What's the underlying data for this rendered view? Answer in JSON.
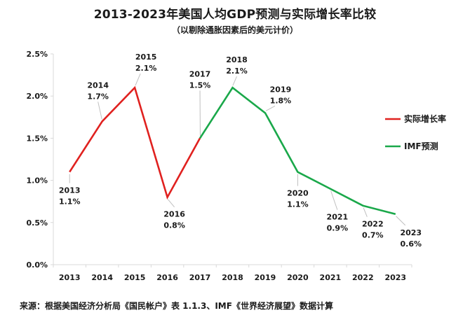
{
  "header": {
    "title": "2013-2023年美国人均GDP预测与实际增长率比较",
    "subtitle": "（以剔除通胀因素后的美元计价）"
  },
  "footer": {
    "source": "来源：根据美国经济分析局《国民帐户》表 1.1.3、IMF《世界经济展望》数据计算"
  },
  "colors": {
    "actual": "#e0211f",
    "forecast": "#1aa84a",
    "axis": "#d9d9d9",
    "text": "#1a1a1a",
    "leader": "#bfbfbf"
  },
  "chart_data": {
    "type": "line",
    "title": "2013-2023年美国人均GDP预测与实际增长率比较",
    "subtitle": "（以剔除通胀因素后的美元计价）",
    "xlabel": "",
    "ylabel": "",
    "ylim": [
      0,
      2.5
    ],
    "y_ticks": [
      "0.0%",
      "0.5%",
      "1.0%",
      "1.5%",
      "2.0%",
      "2.5%"
    ],
    "grid": false,
    "legend_position": "right",
    "categories": [
      "2013",
      "2014",
      "2015",
      "2016",
      "2017",
      "2018",
      "2019",
      "2020",
      "2021",
      "2022",
      "2023"
    ],
    "series": [
      {
        "name": "实际增长率",
        "color": "#e0211f",
        "x": [
          "2013",
          "2014",
          "2015",
          "2016",
          "2017"
        ],
        "values": [
          1.1,
          1.7,
          2.1,
          0.8,
          1.5
        ]
      },
      {
        "name": "IMF预测",
        "color": "#1aa84a",
        "x": [
          "2017",
          "2018",
          "2019",
          "2020",
          "2021",
          "2022",
          "2023"
        ],
        "values": [
          1.5,
          2.1,
          1.8,
          1.1,
          0.9,
          0.7,
          0.6
        ]
      }
    ],
    "annotations": [
      {
        "year": "2013",
        "label": "1.1%",
        "value": 1.1
      },
      {
        "year": "2014",
        "label": "1.7%",
        "value": 1.7
      },
      {
        "year": "2015",
        "label": "2.1%",
        "value": 2.1
      },
      {
        "year": "2016",
        "label": "0.8%",
        "value": 0.8
      },
      {
        "year": "2017",
        "label": "1.5%",
        "value": 1.5
      },
      {
        "year": "2018",
        "label": "2.1%",
        "value": 2.1
      },
      {
        "year": "2019",
        "label": "1.8%",
        "value": 1.8
      },
      {
        "year": "2020",
        "label": "1.1%",
        "value": 1.1
      },
      {
        "year": "2021",
        "label": "0.9%",
        "value": 0.9
      },
      {
        "year": "2022",
        "label": "0.7%",
        "value": 0.7
      },
      {
        "year": "2023",
        "label": "0.6%",
        "value": 0.6
      }
    ]
  }
}
